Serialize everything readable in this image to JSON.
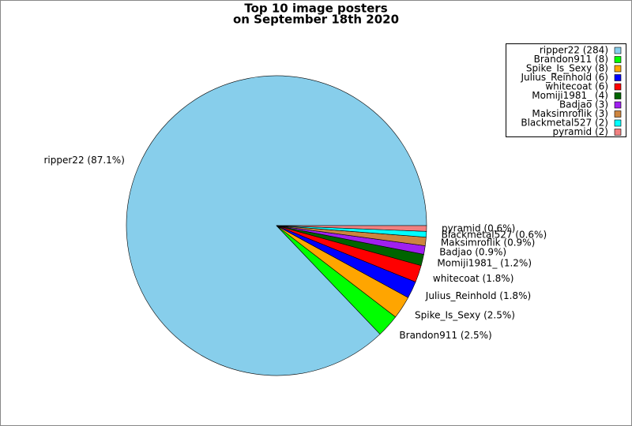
{
  "chart_data": {
    "type": "pie",
    "title": [
      "Top 10 image posters",
      "on September 18th 2020"
    ],
    "categories": [
      "ripper22",
      "Brandon911",
      "Spike_Is_Sexy",
      "Julius_Reinhold",
      "whitecoat",
      "Momiji1981_",
      "Badjao",
      "Maksimroflik",
      "Blackmetal527",
      "pyramid"
    ],
    "values": [
      284,
      8,
      8,
      6,
      6,
      4,
      3,
      3,
      2,
      2
    ],
    "value_labels": [
      "ripper22 (87.1%)",
      "Brandon911 (2.5%)",
      "Spike_Is_Sexy (2.5%)",
      "Julius_Reinhold (1.8%)",
      "whitecoat (1.8%)",
      "Momiji1981_ (1.2%)",
      "Badjao (0.9%)",
      "Maksimroflik (0.9%)",
      "Blackmetal527 (0.6%)",
      "pyramid (0.6%)"
    ],
    "legend_labels": [
      "ripper22 (284)",
      "Brandon911 (8)",
      "Spike_Is_Sexy (8)",
      "Julius_Reinhold (6)",
      "whitecoat (6)",
      "Momiji1981_ (4)",
      "Badjao (3)",
      "Maksimroflik (3)",
      "Blackmetal527 (2)",
      "pyramid (2)"
    ],
    "colors": [
      "#87ceeb",
      "#00ff00",
      "#ffa500",
      "#0000ff",
      "#ff0000",
      "#006400",
      "#a020f0",
      "#cd853f",
      "#00ffff",
      "#f08080"
    ],
    "legend": "upper right"
  }
}
